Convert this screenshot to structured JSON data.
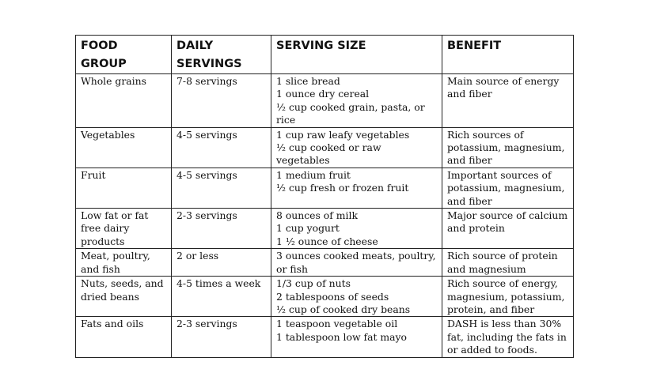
{
  "headers": [
    "FOOD GROUP",
    "DAILY SERVINGS",
    "SERVING SIZE",
    "BENEFIT"
  ],
  "rows": [
    {
      "group": [
        "Whole grains"
      ],
      "servings": "7-8 servings",
      "size": [
        "1 slice bread",
        "1 ounce dry cereal",
        "½ cup cooked grain, pasta, or",
        "rice"
      ],
      "benefit": [
        "Main source of energy",
        "and fiber"
      ]
    },
    {
      "group": [
        "Vegetables"
      ],
      "servings": "4-5 servings",
      "size": [
        "1 cup raw leafy vegetables",
        "½ cup cooked or raw vegetables"
      ],
      "benefit": [
        "Rich sources of",
        "potassium, magnesium,",
        "and fiber"
      ]
    },
    {
      "group": [
        "Fruit"
      ],
      "servings": "4-5 servings",
      "size": [
        "1 medium fruit",
        " ½ cup fresh or frozen fruit"
      ],
      "benefit": [
        "Important sources of",
        "potassium, magnesium,",
        "and fiber"
      ]
    },
    {
      "group": [
        "Low fat or fat",
        "free dairy",
        "products"
      ],
      "servings": "2-3 servings",
      "size": [
        "8 ounces of milk",
        "1 cup yogurt",
        "1 ½ ounce of cheese"
      ],
      "benefit": [
        "Major source of calcium",
        "and protein"
      ]
    },
    {
      "group": [
        "Meat, poultry,",
        "and fish"
      ],
      "servings": "2 or less",
      "size": [
        "3 ounces cooked meats, poultry,",
        "or fish"
      ],
      "benefit": [
        "Rich source of protein",
        "and magnesium"
      ]
    },
    {
      "group": [
        "Nuts, seeds, and",
        "dried beans"
      ],
      "servings": "4-5 times a week",
      "size": [
        "1/3 cup of nuts",
        "2 tablespoons of seeds",
        "½ cup of cooked dry beans"
      ],
      "benefit": [
        "Rich source of energy,",
        "magnesium, potassium,",
        "protein, and fiber"
      ]
    },
    {
      "group": [
        "Fats and oils"
      ],
      "servings": "2-3 servings",
      "size": [
        "1 teaspoon vegetable oil",
        "1 tablespoon low fat mayo"
      ],
      "benefit": [
        "DASH is less than 30%",
        "fat, including the fats in",
        "or added to foods."
      ]
    }
  ]
}
